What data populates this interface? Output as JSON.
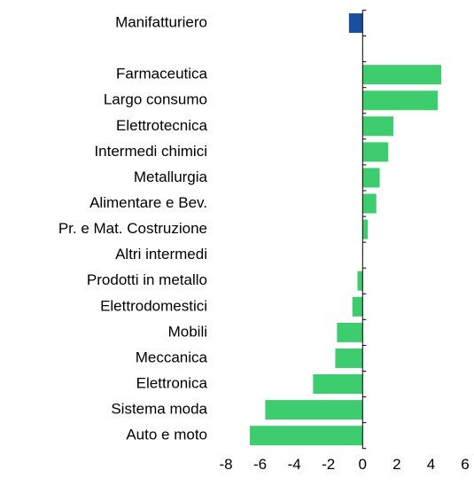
{
  "chart_data": {
    "type": "barh",
    "categories": [
      "Manifatturiero",
      null,
      "Farmaceutica",
      "Largo consumo",
      "Elettrotecnica",
      "Intermedi chimici",
      "Metallurgia",
      "Alimentare e Bev.",
      "Pr. e Mat. Costruzione",
      "Altri intermedi",
      "Prodotti in metallo",
      "Elettrodomestici",
      "Mobili",
      "Meccanica",
      "Elettronica",
      "Sistema moda",
      "Auto e moto"
    ],
    "values": [
      -0.8,
      null,
      4.6,
      4.4,
      1.8,
      1.5,
      1.0,
      0.8,
      0.3,
      0,
      -0.3,
      -0.6,
      -1.5,
      -1.6,
      -2.9,
      -5.7,
      -6.6
    ],
    "colors": [
      "#1a4fa0",
      null,
      "#3dcc6e",
      "#3dcc6e",
      "#3dcc6e",
      "#3dcc6e",
      "#3dcc6e",
      "#3dcc6e",
      "#3dcc6e",
      "#3dcc6e",
      "#3dcc6e",
      "#3dcc6e",
      "#3dcc6e",
      "#3dcc6e",
      "#3dcc6e",
      "#3dcc6e",
      "#3dcc6e"
    ],
    "xlim": [
      -8,
      6
    ],
    "xticks": [
      -8,
      -6,
      -4,
      -2,
      0,
      2,
      4,
      6
    ]
  }
}
